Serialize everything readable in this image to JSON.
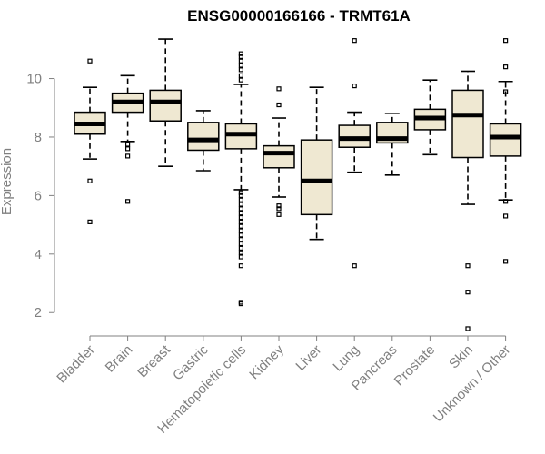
{
  "chart_data": {
    "type": "boxplot",
    "title": "ENSG00000166166 - TRMT61A",
    "ylabel": "Expression",
    "xlabel": "",
    "ylim": [
      1.2,
      11.6
    ],
    "yticks": [
      2,
      4,
      6,
      8,
      10
    ],
    "box_fill": "#efe8d2",
    "box_stroke": "#000000",
    "axis_color": "#808080",
    "categories": [
      "Bladder",
      "Brain",
      "Breast",
      "Gastric",
      "Hematopoietic cells",
      "Kidney",
      "Liver",
      "Lung",
      "Pancreas",
      "Prostate",
      "Skin",
      "Unknown / Other"
    ],
    "boxes": [
      {
        "q1": 8.1,
        "median": 8.45,
        "q3": 8.85,
        "whisker_low": 7.25,
        "whisker_high": 9.7,
        "outliers": [
          10.6,
          6.5,
          5.1
        ]
      },
      {
        "q1": 8.85,
        "median": 9.2,
        "q3": 9.5,
        "whisker_low": 7.85,
        "whisker_high": 10.1,
        "outliers": [
          7.75,
          7.6,
          7.35,
          5.8
        ]
      },
      {
        "q1": 8.55,
        "median": 9.2,
        "q3": 9.6,
        "whisker_low": 7.0,
        "whisker_high": 11.35,
        "outliers": []
      },
      {
        "q1": 7.55,
        "median": 7.9,
        "q3": 8.5,
        "whisker_low": 6.85,
        "whisker_high": 8.9,
        "outliers": []
      },
      {
        "q1": 7.6,
        "median": 8.1,
        "q3": 8.45,
        "whisker_low": 6.2,
        "whisker_high": 9.8,
        "outliers": [
          10.85,
          10.75,
          10.6,
          10.45,
          10.3,
          10.1,
          9.95,
          6.1,
          6.0,
          5.85,
          5.7,
          5.55,
          5.4,
          5.25,
          5.1,
          4.95,
          4.8,
          4.65,
          4.5,
          4.35,
          4.2,
          4.05,
          3.9,
          3.6,
          2.35,
          2.3
        ]
      },
      {
        "q1": 6.95,
        "median": 7.45,
        "q3": 7.7,
        "whisker_low": 5.95,
        "whisker_high": 8.65,
        "outliers": [
          9.65,
          9.1,
          5.65,
          5.55,
          5.35
        ]
      },
      {
        "q1": 5.35,
        "median": 6.5,
        "q3": 7.9,
        "whisker_low": 4.5,
        "whisker_high": 9.7,
        "outliers": []
      },
      {
        "q1": 7.65,
        "median": 7.95,
        "q3": 8.4,
        "whisker_low": 6.8,
        "whisker_high": 8.85,
        "outliers": [
          11.3,
          9.75,
          3.6
        ]
      },
      {
        "q1": 7.8,
        "median": 7.95,
        "q3": 8.5,
        "whisker_low": 6.7,
        "whisker_high": 8.8,
        "outliers": []
      },
      {
        "q1": 8.25,
        "median": 8.65,
        "q3": 8.95,
        "whisker_low": 7.4,
        "whisker_high": 9.95,
        "outliers": []
      },
      {
        "q1": 7.3,
        "median": 8.75,
        "q3": 9.6,
        "whisker_low": 5.7,
        "whisker_high": 10.25,
        "outliers": [
          3.6,
          2.7,
          1.45
        ]
      },
      {
        "q1": 7.35,
        "median": 8.0,
        "q3": 8.45,
        "whisker_low": 5.85,
        "whisker_high": 9.9,
        "outliers": [
          11.3,
          10.4,
          9.55,
          5.8,
          5.3,
          3.75
        ]
      }
    ]
  }
}
